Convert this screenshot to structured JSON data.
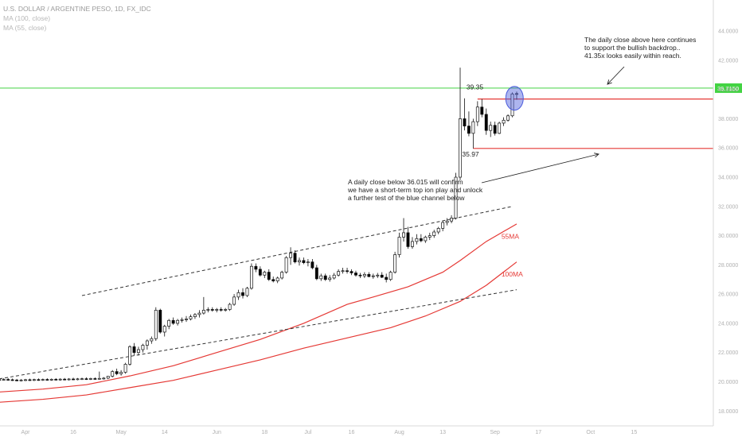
{
  "header": {
    "symbol": "U.S. DOLLAR / ARGENTINE PESO, 1D, FX_IDC",
    "ma1": "MA (100, close)",
    "ma2": "MA (55, close)"
  },
  "colors": {
    "ma": "#e53935",
    "level": "#e53935",
    "hline": "#43d343",
    "up": "#ffffff",
    "down": "#000000",
    "ellipse": "#4a5bdc"
  },
  "chart_data": {
    "type": "candlestick",
    "yaxis_ticks": [
      "44.0000",
      "42.0000",
      "40.0000",
      "38.0000",
      "36.0000",
      "34.0000",
      "32.0000",
      "30.0000",
      "28.0000",
      "26.0000",
      "24.0000",
      "22.0000",
      "20.0000",
      "18.0000"
    ],
    "ylim": [
      17.2,
      45.8
    ],
    "xaxis_ticks": [
      {
        "label": "Apr",
        "x": 0
      },
      {
        "label": "16",
        "x": 11
      },
      {
        "label": "May",
        "x": 22
      },
      {
        "label": "14",
        "x": 32
      },
      {
        "label": "Jun",
        "x": 44
      },
      {
        "label": "18",
        "x": 55
      },
      {
        "label": "Jul",
        "x": 65
      },
      {
        "label": "16",
        "x": 75
      },
      {
        "label": "Aug",
        "x": 86
      },
      {
        "label": "13",
        "x": 96
      },
      {
        "label": "Sep",
        "x": 108
      },
      {
        "label": "17",
        "x": 118
      },
      {
        "label": "Oct",
        "x": 130
      },
      {
        "label": "15",
        "x": 140
      }
    ],
    "current_price_label": "39.7150",
    "current_price": 39.715,
    "ohlc": [
      [
        -6,
        20.12,
        20.22,
        20.06,
        20.15
      ],
      [
        -5,
        20.15,
        20.24,
        20.08,
        20.16
      ],
      [
        -4,
        20.16,
        20.25,
        20.1,
        20.14
      ],
      [
        -3,
        20.14,
        20.22,
        20.06,
        20.12
      ],
      [
        -2,
        20.12,
        20.2,
        20.04,
        20.11
      ],
      [
        -1,
        20.11,
        20.19,
        20.03,
        20.12
      ],
      [
        0,
        20.12,
        20.2,
        20.05,
        20.14
      ],
      [
        1,
        20.14,
        20.22,
        20.06,
        20.13
      ],
      [
        2,
        20.13,
        20.21,
        20.05,
        20.15
      ],
      [
        3,
        20.15,
        20.23,
        20.07,
        20.14
      ],
      [
        4,
        20.14,
        20.22,
        20.06,
        20.16
      ],
      [
        5,
        20.16,
        20.24,
        20.08,
        20.15
      ],
      [
        6,
        20.15,
        20.23,
        20.07,
        20.17
      ],
      [
        7,
        20.17,
        20.25,
        20.09,
        20.16
      ],
      [
        8,
        20.16,
        20.24,
        20.08,
        20.18
      ],
      [
        9,
        20.18,
        20.26,
        20.1,
        20.17
      ],
      [
        10,
        20.17,
        20.25,
        20.09,
        20.19
      ],
      [
        11,
        20.19,
        20.28,
        20.11,
        20.18
      ],
      [
        12,
        20.18,
        20.26,
        20.1,
        20.2
      ],
      [
        13,
        20.2,
        20.28,
        20.12,
        20.21
      ],
      [
        14,
        20.21,
        20.3,
        20.13,
        20.2
      ],
      [
        15,
        20.2,
        20.28,
        20.12,
        20.22
      ],
      [
        16,
        20.22,
        20.3,
        20.14,
        20.21
      ],
      [
        17,
        20.21,
        20.7,
        20.15,
        20.23
      ],
      [
        18,
        20.23,
        20.32,
        20.15,
        20.25
      ],
      [
        19,
        20.25,
        20.4,
        20.18,
        20.38
      ],
      [
        20,
        20.38,
        20.8,
        20.3,
        20.7
      ],
      [
        21,
        20.7,
        20.9,
        20.45,
        20.55
      ],
      [
        22,
        20.55,
        20.8,
        20.42,
        20.65
      ],
      [
        23,
        20.65,
        21.3,
        20.55,
        21.2
      ],
      [
        24,
        21.2,
        22.5,
        21.1,
        22.4
      ],
      [
        25,
        22.4,
        22.65,
        21.8,
        22.0
      ],
      [
        26,
        22.0,
        22.4,
        21.8,
        22.2
      ],
      [
        27,
        22.2,
        22.6,
        22.0,
        22.5
      ],
      [
        28,
        22.5,
        22.9,
        22.2,
        22.8
      ],
      [
        29,
        22.8,
        23.1,
        22.6,
        22.95
      ],
      [
        30,
        22.95,
        25.1,
        22.8,
        24.9
      ],
      [
        31,
        24.9,
        25.0,
        23.3,
        23.4
      ],
      [
        32,
        23.4,
        23.9,
        23.1,
        23.8
      ],
      [
        33,
        23.8,
        24.3,
        23.6,
        24.2
      ],
      [
        34,
        24.2,
        24.4,
        23.9,
        24.0
      ],
      [
        35,
        24.0,
        24.3,
        23.85,
        24.2
      ],
      [
        36,
        24.2,
        24.4,
        24.05,
        24.25
      ],
      [
        37,
        24.25,
        24.5,
        24.1,
        24.3
      ],
      [
        38,
        24.3,
        24.6,
        24.2,
        24.45
      ],
      [
        39,
        24.45,
        24.7,
        24.3,
        24.6
      ],
      [
        40,
        24.6,
        24.9,
        24.4,
        24.7
      ],
      [
        41,
        24.7,
        25.8,
        24.6,
        24.9
      ],
      [
        42,
        24.9,
        25.1,
        24.75,
        24.95
      ],
      [
        43,
        24.95,
        25.1,
        24.8,
        24.9
      ],
      [
        44,
        24.9,
        25.05,
        24.75,
        24.95
      ],
      [
        45,
        24.95,
        25.1,
        24.8,
        24.93
      ],
      [
        46,
        24.93,
        25.05,
        24.8,
        24.95
      ],
      [
        47,
        24.95,
        25.4,
        24.85,
        25.3
      ],
      [
        48,
        25.3,
        26.0,
        25.2,
        25.8
      ],
      [
        49,
        25.8,
        26.3,
        25.6,
        26.1
      ],
      [
        50,
        26.1,
        26.4,
        25.7,
        25.9
      ],
      [
        51,
        25.9,
        26.5,
        25.8,
        26.4
      ],
      [
        52,
        26.4,
        28.1,
        26.3,
        27.9
      ],
      [
        53,
        27.9,
        28.1,
        27.5,
        27.7
      ],
      [
        54,
        27.7,
        27.9,
        27.2,
        27.3
      ],
      [
        55,
        27.3,
        27.6,
        27.1,
        27.5
      ],
      [
        56,
        27.5,
        27.7,
        26.9,
        27.0
      ],
      [
        57,
        27.0,
        27.2,
        26.8,
        26.9
      ],
      [
        58,
        26.9,
        27.2,
        26.75,
        27.1
      ],
      [
        59,
        27.1,
        27.6,
        27.0,
        27.5
      ],
      [
        60,
        27.5,
        28.6,
        27.4,
        28.5
      ],
      [
        61,
        28.5,
        29.2,
        28.0,
        28.8
      ],
      [
        62,
        28.8,
        29.0,
        28.1,
        28.2
      ],
      [
        63,
        28.2,
        28.5,
        27.95,
        28.3
      ],
      [
        64,
        28.3,
        28.5,
        28.05,
        28.15
      ],
      [
        65,
        28.15,
        28.4,
        27.9,
        28.2
      ],
      [
        66,
        28.2,
        28.4,
        27.7,
        27.8
      ],
      [
        67,
        27.8,
        28.0,
        26.95,
        27.05
      ],
      [
        68,
        27.05,
        27.4,
        26.9,
        27.25
      ],
      [
        69,
        27.25,
        27.4,
        26.9,
        27.0
      ],
      [
        70,
        27.0,
        27.3,
        26.85,
        27.1
      ],
      [
        71,
        27.1,
        27.45,
        27.0,
        27.3
      ],
      [
        72,
        27.3,
        27.7,
        27.2,
        27.55
      ],
      [
        73,
        27.55,
        27.8,
        27.4,
        27.6
      ],
      [
        74,
        27.6,
        27.8,
        27.4,
        27.55
      ],
      [
        75,
        27.55,
        27.7,
        27.3,
        27.45
      ],
      [
        76,
        27.45,
        27.6,
        27.2,
        27.3
      ],
      [
        77,
        27.3,
        27.45,
        27.1,
        27.25
      ],
      [
        78,
        27.25,
        27.5,
        27.1,
        27.35
      ],
      [
        79,
        27.35,
        27.5,
        27.15,
        27.2
      ],
      [
        80,
        27.2,
        27.4,
        27.05,
        27.25
      ],
      [
        81,
        27.25,
        27.45,
        27.1,
        27.3
      ],
      [
        82,
        27.3,
        27.5,
        27.1,
        27.15
      ],
      [
        83,
        27.15,
        27.4,
        26.8,
        27.0
      ],
      [
        84,
        27.0,
        27.6,
        26.9,
        27.5
      ],
      [
        85,
        27.5,
        28.9,
        27.4,
        28.7
      ],
      [
        86,
        28.7,
        30.2,
        28.5,
        29.9
      ],
      [
        87,
        29.9,
        31.2,
        29.6,
        30.2
      ],
      [
        88,
        30.2,
        30.6,
        29.1,
        29.25
      ],
      [
        89,
        29.25,
        29.9,
        29.1,
        29.6
      ],
      [
        90,
        29.6,
        30.1,
        29.4,
        29.8
      ],
      [
        91,
        29.8,
        30.1,
        29.55,
        29.65
      ],
      [
        92,
        29.65,
        30.0,
        29.5,
        29.9
      ],
      [
        93,
        29.9,
        30.2,
        29.7,
        30.0
      ],
      [
        94,
        30.0,
        30.4,
        29.85,
        30.25
      ],
      [
        95,
        30.25,
        30.6,
        30.1,
        30.5
      ],
      [
        96,
        30.5,
        31.0,
        30.3,
        30.9
      ],
      [
        97,
        30.9,
        31.2,
        30.7,
        31.0
      ],
      [
        98,
        31.0,
        31.4,
        30.85,
        31.2
      ],
      [
        99,
        31.2,
        34.3,
        31.1,
        34.0
      ],
      [
        100,
        34.0,
        41.5,
        33.8,
        38.0
      ],
      [
        101,
        38.0,
        39.4,
        37.2,
        37.5
      ],
      [
        102,
        37.5,
        38.5,
        36.8,
        37.0
      ],
      [
        103,
        37.0,
        38.0,
        35.97,
        37.8
      ],
      [
        104,
        37.8,
        39.2,
        37.5,
        38.8
      ],
      [
        105,
        38.8,
        39.35,
        38.1,
        38.3
      ],
      [
        106,
        38.3,
        38.7,
        36.9,
        37.2
      ],
      [
        107,
        37.2,
        37.8,
        36.75,
        37.55
      ],
      [
        108,
        37.55,
        37.8,
        36.85,
        37.0
      ],
      [
        109,
        37.0,
        37.8,
        36.95,
        37.7
      ],
      [
        110,
        37.7,
        38.1,
        37.5,
        37.9
      ],
      [
        111,
        37.9,
        38.3,
        37.8,
        38.2
      ],
      [
        112,
        38.2,
        39.8,
        38.1,
        39.7
      ],
      [
        113,
        39.7,
        39.85,
        39.3,
        39.72
      ]
    ],
    "ma55": [
      [
        -6,
        19.3
      ],
      [
        4,
        19.5
      ],
      [
        14,
        19.8
      ],
      [
        24,
        20.4
      ],
      [
        34,
        21.1
      ],
      [
        44,
        22.0
      ],
      [
        54,
        22.9
      ],
      [
        64,
        24.0
      ],
      [
        74,
        25.3
      ],
      [
        80,
        25.8
      ],
      [
        88,
        26.5
      ],
      [
        96,
        27.5
      ],
      [
        100,
        28.3
      ],
      [
        106,
        29.6
      ],
      [
        113,
        30.8
      ]
    ],
    "ma100": [
      [
        -6,
        18.6
      ],
      [
        4,
        18.8
      ],
      [
        14,
        19.1
      ],
      [
        24,
        19.6
      ],
      [
        34,
        20.1
      ],
      [
        44,
        20.8
      ],
      [
        54,
        21.5
      ],
      [
        64,
        22.3
      ],
      [
        74,
        23.0
      ],
      [
        84,
        23.7
      ],
      [
        92,
        24.5
      ],
      [
        100,
        25.5
      ],
      [
        106,
        26.6
      ],
      [
        113,
        28.2
      ]
    ],
    "trendlines": [
      {
        "name": "upper-channel",
        "from": [
          13,
          25.9
        ],
        "to": [
          112,
          32.0
        ]
      },
      {
        "name": "lower-channel",
        "from": [
          -6,
          20.2
        ],
        "to": [
          113,
          26.3
        ]
      }
    ],
    "levels": [
      {
        "name": "resistance",
        "value": 39.35,
        "label": "39.35",
        "from": 104
      },
      {
        "name": "support",
        "value": 35.97,
        "label": "35.97",
        "from": 103
      }
    ],
    "ma_labels": [
      {
        "text": "55MA",
        "x": 104,
        "y": 29.8
      },
      {
        "text": "100MA",
        "x": 104,
        "y": 27.2
      }
    ],
    "annotations": {
      "top_right": [
        "The daily close above here continues",
        "to support the bullish backdrop..",
        "41.35x looks easily within reach."
      ],
      "middle": [
        "A daily close below 36.015 will confirm",
        "we have a short-term top ion play and unlock",
        "a further test of the blue channel below"
      ]
    }
  }
}
